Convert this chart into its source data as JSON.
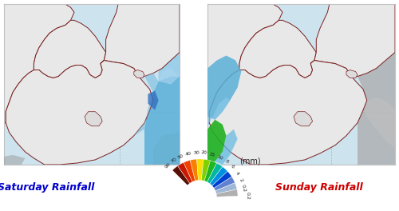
{
  "title_left": "Saturday Rainfall",
  "title_right": "Sunday Rainfall",
  "title_left_color": "#0000cc",
  "title_right_color": "#cc0000",
  "title_fontsize": 9,
  "background_color": "#ffffff",
  "legend_mm_label": "(mm)",
  "sea_color": "#cde4ef",
  "land_color": "#e8e8e8",
  "border_color": "#7a2020",
  "grid_color": "#aaaaaa",
  "fig_width": 5.0,
  "fig_height": 2.64,
  "legend_colors": [
    "#5a0f05",
    "#c81800",
    "#f04000",
    "#f88000",
    "#f8e000",
    "#80d000",
    "#20b820",
    "#00b8a0",
    "#0090e0",
    "#0040d0",
    "#6080d0",
    "#a0b8d8",
    "#b0b0b0"
  ],
  "legend_labels": [
    "90",
    "70",
    "50",
    "40",
    "30",
    "20",
    "15",
    "10",
    "8",
    "6",
    "4",
    "2",
    "0.2"
  ]
}
